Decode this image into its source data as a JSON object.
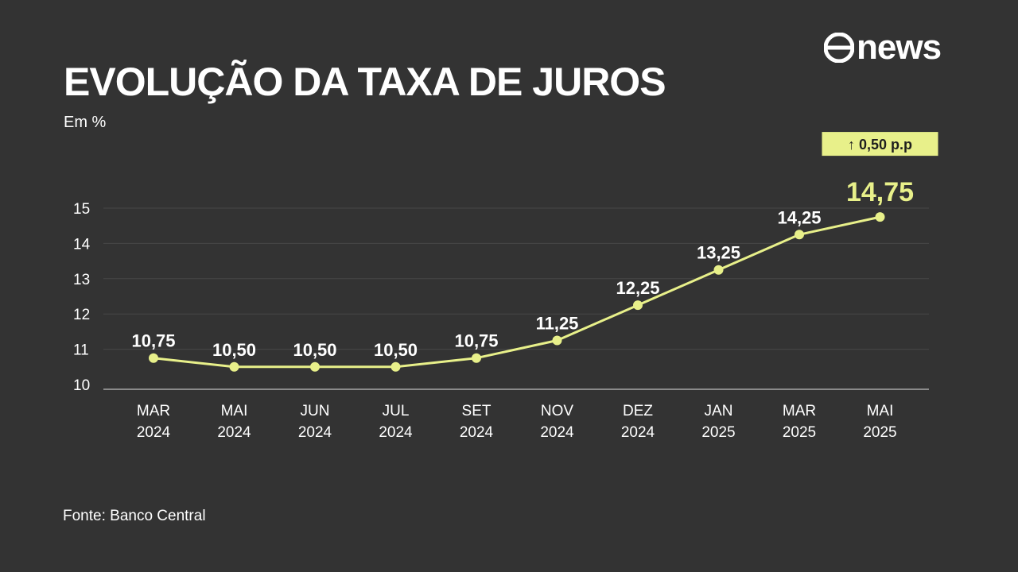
{
  "header": {
    "title": "EVOLUÇÃO DA TAXA DE JUROS",
    "unit": "Em %"
  },
  "logo": {
    "text": "news",
    "icon": "globo-circle-icon"
  },
  "footer": {
    "source": "Fonte: Banco Central"
  },
  "colors": {
    "background": "#333333",
    "line": "#e8f08a",
    "highlight": "#e8f08a",
    "badge_bg": "#e8f08a",
    "text": "#ffffff",
    "grid": "#474747",
    "axis": "#8a8a8a"
  },
  "chart_data": {
    "type": "line",
    "title": "EVOLUÇÃO DA TAXA DE JUROS",
    "subtitle": "Em %",
    "categories": [
      [
        "MAR",
        "2024"
      ],
      [
        "MAI",
        "2024"
      ],
      [
        "JUN",
        "2024"
      ],
      [
        "JUL",
        "2024"
      ],
      [
        "SET",
        "2024"
      ],
      [
        "NOV",
        "2024"
      ],
      [
        "DEZ",
        "2024"
      ],
      [
        "JAN",
        "2025"
      ],
      [
        "MAR",
        "2025"
      ],
      [
        "MAI",
        "2025"
      ]
    ],
    "values": [
      10.75,
      10.5,
      10.5,
      10.5,
      10.75,
      11.25,
      12.25,
      13.25,
      14.25,
      14.75
    ],
    "data_labels": [
      "10,75",
      "10,50",
      "10,50",
      "10,50",
      "10,75",
      "11,25",
      "12,25",
      "13,25",
      "14,25",
      "14,75"
    ],
    "y_ticks": [
      10,
      11,
      12,
      13,
      14,
      15
    ],
    "ylim": [
      10,
      15
    ],
    "grid": true,
    "highlight_index": 9,
    "annotation": {
      "text": "↑ 0,50 p.p",
      "point_index": 9
    }
  }
}
